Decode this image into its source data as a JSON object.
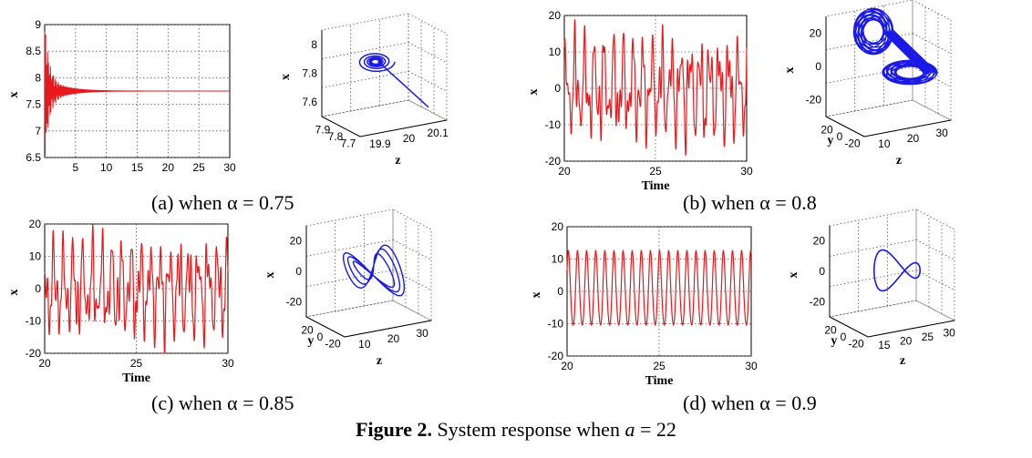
{
  "figure": {
    "label": "Figure 2.",
    "text": "System response when",
    "param_symbol": "a",
    "param_value": "= 22"
  },
  "captions": {
    "a": "(a) when α = 0.75",
    "b": "(b) when α = 0.8",
    "c": "(c) when α = 0.85",
    "d": "(d) when α = 0.9"
  },
  "colors": {
    "time_series": "#e8191c",
    "attractor": "#1a1ae6",
    "grid": "#555555"
  },
  "chart_data": [
    {
      "id": "a-time",
      "type": "line",
      "panel": "a",
      "ylabel": "x",
      "xlabel": "",
      "xlim": [
        0,
        30
      ],
      "ylim": [
        6.5,
        9
      ],
      "xticks": [
        "5",
        "10",
        "15",
        "20",
        "25",
        "30"
      ],
      "yticks": [
        "6.5",
        "7",
        "7.5",
        "8",
        "8.5",
        "9"
      ],
      "behavior": "damped oscillation settling to x ≈ 7.75"
    },
    {
      "id": "a-phase",
      "type": "line",
      "panel": "a",
      "projection": "3d",
      "zaxis_label": "x",
      "xaxis_label": "",
      "yaxis_label": "z",
      "zticks": [
        "7.6",
        "7.8",
        "8"
      ],
      "left_ticks": [
        "7.9",
        "7.8",
        "7.7"
      ],
      "right_ticks": [
        "19.9",
        "20",
        "20.1"
      ],
      "behavior": "spiral converging to a fixed point"
    },
    {
      "id": "b-time",
      "type": "line",
      "panel": "b",
      "ylabel": "x",
      "xlabel": "Time",
      "xlim": [
        20,
        30
      ],
      "ylim": [
        -20,
        20
      ],
      "xticks": [
        "20",
        "25",
        "30"
      ],
      "yticks": [
        "-20",
        "-10",
        "0",
        "10",
        "20"
      ],
      "behavior": "chaotic oscillation, amplitude about ±15"
    },
    {
      "id": "b-phase",
      "type": "line",
      "panel": "b",
      "projection": "3d",
      "zaxis_label": "x",
      "yaxis_label": "y",
      "xaxis_label": "z",
      "zticks": [
        "-20",
        "0",
        "20"
      ],
      "left_ticks": [
        "20",
        "0",
        "-20"
      ],
      "right_ticks": [
        "10",
        "20",
        "30"
      ],
      "behavior": "dense double-scroll chaotic attractor"
    },
    {
      "id": "c-time",
      "type": "line",
      "panel": "c",
      "ylabel": "x",
      "xlabel": "Time",
      "xlim": [
        20,
        30
      ],
      "ylim": [
        -20,
        20
      ],
      "xticks": [
        "20",
        "25",
        "30"
      ],
      "yticks": [
        "-20",
        "-10",
        "0",
        "10",
        "20"
      ],
      "behavior": "irregular oscillation, amplitude about ±17"
    },
    {
      "id": "c-phase",
      "type": "line",
      "panel": "c",
      "projection": "3d",
      "zaxis_label": "x",
      "yaxis_label": "y",
      "xaxis_label": "z",
      "zticks": [
        "-20",
        "0",
        "20"
      ],
      "left_ticks": [
        "20",
        "0",
        "-20"
      ],
      "right_ticks": [
        "10",
        "20",
        "30"
      ],
      "behavior": "multi-loop periodic orbit"
    },
    {
      "id": "d-time",
      "type": "line",
      "panel": "d",
      "ylabel": "x",
      "xlabel": "Time",
      "xlim": [
        20,
        30
      ],
      "ylim": [
        -20,
        20
      ],
      "xticks": [
        "20",
        "25",
        "30"
      ],
      "yticks": [
        "-20",
        "-10",
        "0",
        "10",
        "20"
      ],
      "behavior": "regular periodic oscillation, amplitude about ±12"
    },
    {
      "id": "d-phase",
      "type": "line",
      "panel": "d",
      "projection": "3d",
      "zaxis_label": "x",
      "yaxis_label": "y",
      "xaxis_label": "z",
      "zticks": [
        "-20",
        "0",
        "20"
      ],
      "left_ticks": [
        "20",
        "0",
        "-20"
      ],
      "right_ticks": [
        "15",
        "20",
        "25",
        "30"
      ],
      "behavior": "single figure-eight limit cycle"
    }
  ]
}
